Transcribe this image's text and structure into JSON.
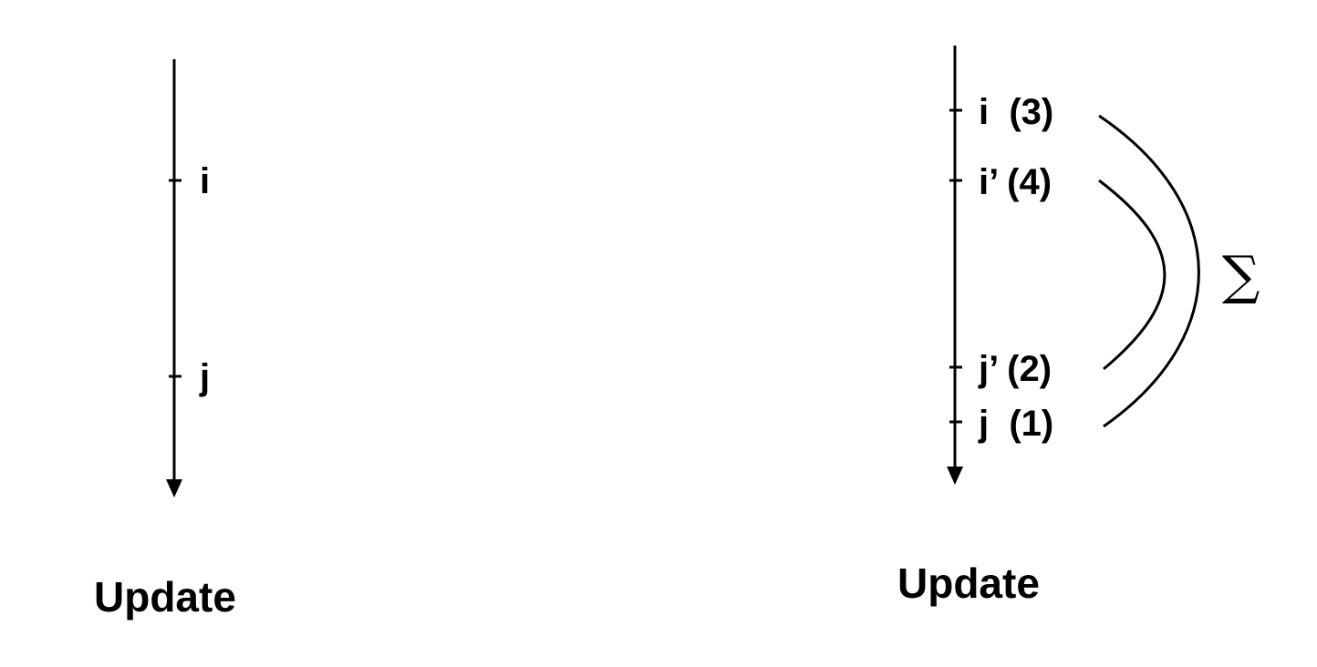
{
  "left_panel": {
    "caption": "Update",
    "ticks": [
      {
        "label": "i"
      },
      {
        "label": "j"
      }
    ]
  },
  "right_panel": {
    "caption": "Update",
    "ticks": [
      {
        "label": "i  (3)"
      },
      {
        "label": "i’ (4)"
      },
      {
        "label": "j’ (2)"
      },
      {
        "label": "j  (1)"
      }
    ],
    "sum_symbol": "∑"
  },
  "colors": {
    "ink": "#000000",
    "background": "#ffffff"
  }
}
